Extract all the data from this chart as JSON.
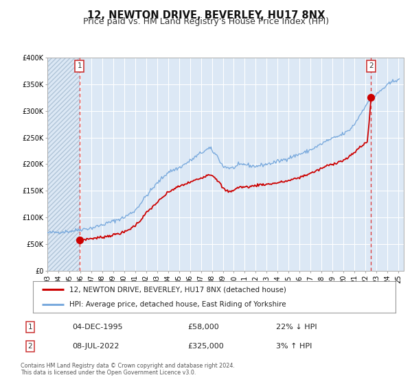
{
  "title": "12, NEWTON DRIVE, BEVERLEY, HU17 8NX",
  "subtitle": "Price paid vs. HM Land Registry's House Price Index (HPI)",
  "legend_line1": "12, NEWTON DRIVE, BEVERLEY, HU17 8NX (detached house)",
  "legend_line2": "HPI: Average price, detached house, East Riding of Yorkshire",
  "footnote1": "Contains HM Land Registry data © Crown copyright and database right 2024.",
  "footnote2": "This data is licensed under the Open Government Licence v3.0.",
  "sale1_date_label": "04-DEC-1995",
  "sale1_price_label": "£58,000",
  "sale1_hpi_label": "22% ↓ HPI",
  "sale2_date_label": "08-JUL-2022",
  "sale2_price_label": "£325,000",
  "sale2_hpi_label": "3% ↑ HPI",
  "sale1_x": 1995.92,
  "sale1_y": 58000,
  "sale2_x": 2022.52,
  "sale2_y": 325000,
  "price_line_color": "#cc0000",
  "hpi_line_color": "#7aaadd",
  "vline_color": "#dd3333",
  "plot_bg_color": "#dce8f5",
  "hatch_color": "#c0cfe0",
  "grid_color": "#ffffff",
  "ylim_min": 0,
  "ylim_max": 400000,
  "xlim_start": 1993.0,
  "xlim_end": 2025.5,
  "yticks": [
    0,
    50000,
    100000,
    150000,
    200000,
    250000,
    300000,
    350000,
    400000
  ],
  "ylabels": [
    "£0",
    "£50K",
    "£100K",
    "£150K",
    "£200K",
    "£250K",
    "£300K",
    "£350K",
    "£400K"
  ],
  "title_fontsize": 10.5,
  "subtitle_fontsize": 9,
  "tick_fontsize": 7,
  "legend_fontsize": 7.5,
  "annot_fontsize": 8
}
